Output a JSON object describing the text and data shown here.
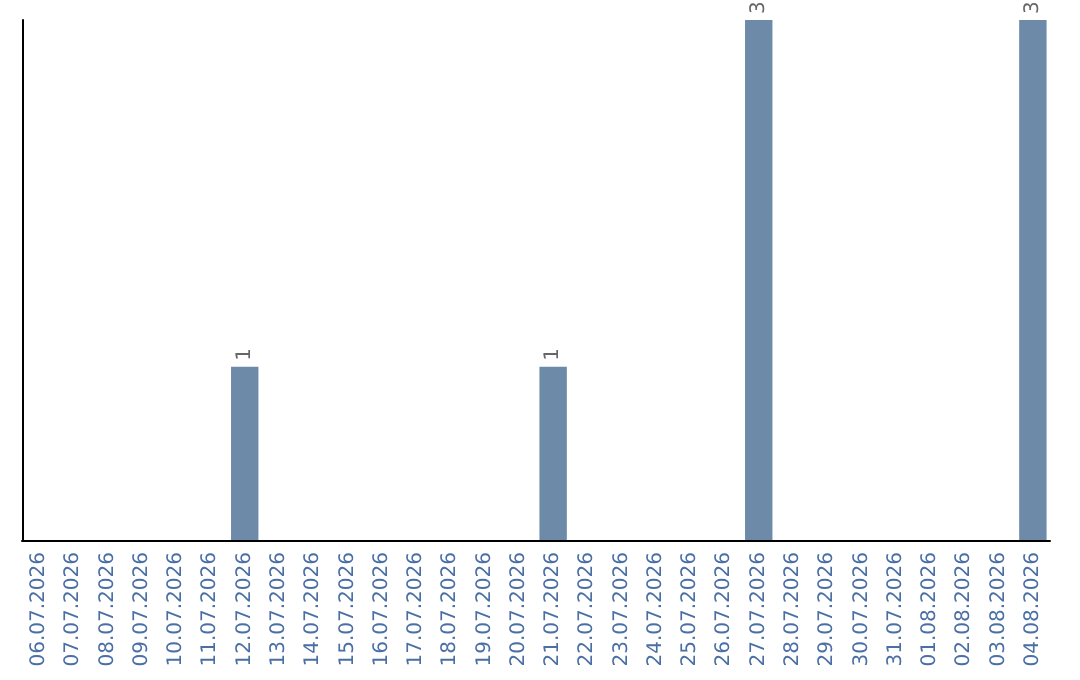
{
  "chart_data": {
    "type": "bar",
    "categories": [
      "06.07.2026",
      "07.07.2026",
      "08.07.2026",
      "09.07.2026",
      "10.07.2026",
      "11.07.2026",
      "12.07.2026",
      "13.07.2026",
      "14.07.2026",
      "15.07.2026",
      "16.07.2026",
      "17.07.2026",
      "18.07.2026",
      "19.07.2026",
      "20.07.2026",
      "21.07.2026",
      "22.07.2026",
      "23.07.2026",
      "24.07.2026",
      "25.07.2026",
      "26.07.2026",
      "27.07.2026",
      "28.07.2026",
      "29.07.2026",
      "30.07.2026",
      "31.07.2026",
      "01.08.2026",
      "02.08.2026",
      "03.08.2026",
      "04.08.2026"
    ],
    "values": [
      0,
      0,
      0,
      0,
      0,
      0,
      1,
      0,
      0,
      0,
      0,
      0,
      0,
      0,
      0,
      1,
      0,
      0,
      0,
      0,
      0,
      3,
      0,
      0,
      0,
      0,
      0,
      0,
      0,
      3
    ],
    "value_labels": [
      null,
      null,
      null,
      null,
      null,
      null,
      "1",
      null,
      null,
      null,
      null,
      null,
      null,
      null,
      null,
      "1",
      null,
      null,
      null,
      null,
      null,
      "3",
      null,
      null,
      null,
      null,
      null,
      null,
      null,
      "3"
    ],
    "color": "#6d8ba8",
    "tick_labels": "x"
  }
}
